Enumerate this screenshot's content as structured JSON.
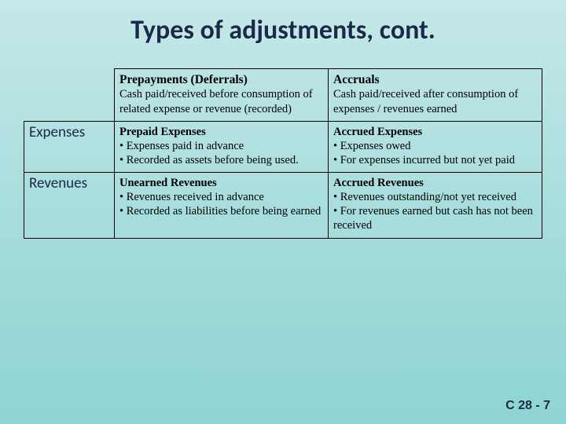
{
  "slide": {
    "title": "Types of adjustments, cont.",
    "footer": "C 28 - 7",
    "background_gradient": [
      "#c5e8e8",
      "#8fd4d4"
    ],
    "title_color": "#1a2a4a",
    "title_fontsize": 34
  },
  "table": {
    "border_color": "#000000",
    "cell_fontsize": 14.5,
    "header_fontsize": 15.5,
    "rowhead_fontsize": 19,
    "columns": {
      "prepayments": {
        "header_bold": "Prepayments (Deferrals)",
        "header_desc": "Cash paid/received before consumption of related expense or revenue (recorded)"
      },
      "accruals": {
        "header_bold": "Accruals",
        "header_desc": "Cash paid/received after consumption of expenses / revenues earned"
      }
    },
    "rows": {
      "expenses": {
        "label": "Expenses",
        "prepayments": {
          "title": "Prepaid Expenses",
          "b1": "• Expenses paid in advance",
          "b2": "• Recorded as assets before being used."
        },
        "accruals": {
          "title": "Accrued Expenses",
          "b1": "• Expenses owed",
          "b2": "• For expenses incurred but not yet paid"
        }
      },
      "revenues": {
        "label": "Revenues",
        "prepayments": {
          "title": "Unearned Revenues",
          "b1": "• Revenues received in advance",
          "b2": "• Recorded as liabilities before being earned"
        },
        "accruals": {
          "title": "Accrued Revenues",
          "b1": "• Revenues outstanding/not yet received",
          "b2": "• For revenues earned but cash has not been received"
        }
      }
    }
  }
}
